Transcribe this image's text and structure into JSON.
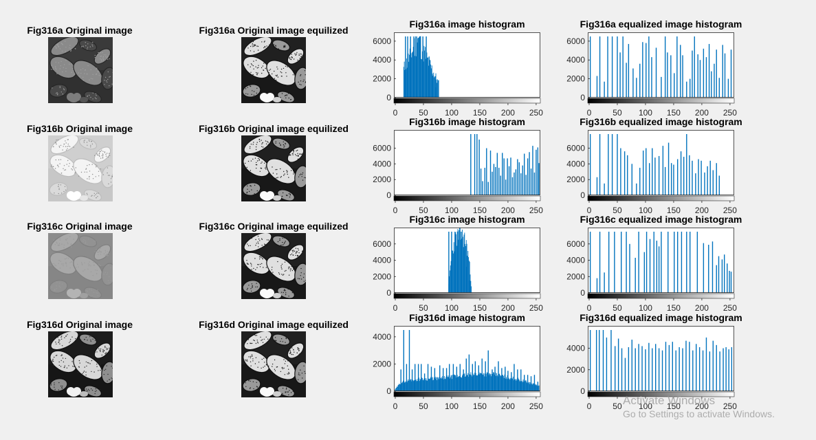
{
  "figure": {
    "axis_color": "#262626",
    "bar_color": "#0072bd"
  },
  "image_panels": [
    {
      "title": "Fig316a Original image",
      "tone": "dark"
    },
    {
      "title": "Fig316a Original image equilized",
      "tone": "equalized"
    },
    {
      "title": "Fig316b Original image",
      "tone": "light"
    },
    {
      "title": "Fig316b Original image equilized",
      "tone": "equalized"
    },
    {
      "title": "Fig316c Original image",
      "tone": "low-contrast"
    },
    {
      "title": "Fig316c Original image equilized",
      "tone": "equalized"
    },
    {
      "title": "Fig316d Original image",
      "tone": "high-contrast"
    },
    {
      "title": "Fig316d Original image equilized",
      "tone": "equalized"
    }
  ],
  "chart_data": [
    {
      "type": "bar",
      "title": "Fig316a image histogram",
      "xlim": [
        0,
        255
      ],
      "ylim": [
        0,
        6500
      ],
      "xticks": [
        0,
        50,
        100,
        150,
        200,
        250
      ],
      "yticks": [
        0,
        2000,
        4000,
        6000
      ],
      "series": [
        {
          "kind": "dense",
          "range": [
            15,
            77
          ],
          "shape": "peak",
          "peak_at": 40,
          "base": 1200,
          "peak": 6500
        }
      ],
      "spikes": [
        [
          18,
          6500
        ],
        [
          22,
          6500
        ],
        [
          27,
          6500
        ],
        [
          33,
          6500
        ],
        [
          38,
          6500
        ],
        [
          44,
          6500
        ],
        [
          49,
          6500
        ],
        [
          55,
          6500
        ],
        [
          60,
          4300
        ],
        [
          66,
          2300
        ],
        [
          72,
          1100
        ]
      ]
    },
    {
      "type": "bar",
      "title": "Fig316a equalized image histogram",
      "xlim": [
        0,
        255
      ],
      "ylim": [
        0,
        6500
      ],
      "xticks": [
        0,
        50,
        100,
        150,
        200,
        250
      ],
      "yticks": [
        0,
        2000,
        4000,
        6000
      ],
      "spikes": [
        [
          2,
          6500
        ],
        [
          14,
          2300
        ],
        [
          19,
          6500
        ],
        [
          27,
          1700
        ],
        [
          33,
          6500
        ],
        [
          41,
          6500
        ],
        [
          50,
          6500
        ],
        [
          55,
          4800
        ],
        [
          60,
          6500
        ],
        [
          66,
          3700
        ],
        [
          70,
          5700
        ],
        [
          78,
          3100
        ],
        [
          84,
          2100
        ],
        [
          90,
          3600
        ],
        [
          95,
          5900
        ],
        [
          101,
          5800
        ],
        [
          106,
          6500
        ],
        [
          111,
          4300
        ],
        [
          119,
          5300
        ],
        [
          128,
          2200
        ],
        [
          135,
          6500
        ],
        [
          139,
          4800
        ],
        [
          145,
          4500
        ],
        [
          151,
          2600
        ],
        [
          156,
          6500
        ],
        [
          162,
          5600
        ],
        [
          166,
          4500
        ],
        [
          173,
          1700
        ],
        [
          179,
          2000
        ],
        [
          183,
          5000
        ],
        [
          187,
          6500
        ],
        [
          193,
          4600
        ],
        [
          197,
          4000
        ],
        [
          203,
          5200
        ],
        [
          208,
          4300
        ],
        [
          213,
          5700
        ],
        [
          217,
          2800
        ],
        [
          222,
          3600
        ],
        [
          226,
          5100
        ],
        [
          231,
          2100
        ],
        [
          237,
          5600
        ],
        [
          241,
          4700
        ],
        [
          247,
          2000
        ],
        [
          252,
          5100
        ]
      ]
    },
    {
      "type": "bar",
      "title": "Fig316b image histogram",
      "xlim": [
        0,
        255
      ],
      "ylim": [
        0,
        7800
      ],
      "xticks": [
        0,
        50,
        100,
        150,
        200,
        250
      ],
      "yticks": [
        0,
        2000,
        4000,
        6000
      ],
      "spikes": [
        [
          134,
          7800
        ],
        [
          141,
          7800
        ],
        [
          145,
          7800
        ],
        [
          149,
          7100
        ],
        [
          152,
          3400
        ],
        [
          155,
          1800
        ],
        [
          159,
          3500
        ],
        [
          162,
          6000
        ],
        [
          165,
          1700
        ],
        [
          169,
          5700
        ],
        [
          172,
          3000
        ],
        [
          175,
          4000
        ],
        [
          178,
          3600
        ],
        [
          181,
          5400
        ],
        [
          184,
          3500
        ],
        [
          187,
          2500
        ],
        [
          190,
          5400
        ],
        [
          193,
          4700
        ],
        [
          196,
          2000
        ],
        [
          199,
          4700
        ],
        [
          202,
          3700
        ],
        [
          205,
          4800
        ],
        [
          208,
          2300
        ],
        [
          211,
          2900
        ],
        [
          214,
          3300
        ],
        [
          217,
          4600
        ],
        [
          220,
          4200
        ],
        [
          223,
          2800
        ],
        [
          226,
          3800
        ],
        [
          229,
          5300
        ],
        [
          232,
          2600
        ],
        [
          235,
          4700
        ],
        [
          238,
          5500
        ],
        [
          241,
          3400
        ],
        [
          244,
          6300
        ],
        [
          247,
          2900
        ],
        [
          250,
          5800
        ],
        [
          253,
          6100
        ],
        [
          255,
          4100
        ]
      ]
    },
    {
      "type": "bar",
      "title": "Fig316b equalized image histogram",
      "xlim": [
        0,
        255
      ],
      "ylim": [
        0,
        7800
      ],
      "xticks": [
        0,
        50,
        100,
        150,
        200,
        250
      ],
      "yticks": [
        0,
        2000,
        4000,
        6000
      ],
      "spikes": [
        [
          2,
          7800
        ],
        [
          14,
          2300
        ],
        [
          19,
          7800
        ],
        [
          27,
          1500
        ],
        [
          34,
          7800
        ],
        [
          41,
          7800
        ],
        [
          50,
          7800
        ],
        [
          56,
          6000
        ],
        [
          63,
          5600
        ],
        [
          68,
          5100
        ],
        [
          76,
          4000
        ],
        [
          84,
          1500
        ],
        [
          90,
          3500
        ],
        [
          96,
          5700
        ],
        [
          101,
          6000
        ],
        [
          107,
          4100
        ],
        [
          112,
          6000
        ],
        [
          117,
          4800
        ],
        [
          124,
          5000
        ],
        [
          131,
          6300
        ],
        [
          135,
          3600
        ],
        [
          141,
          6700
        ],
        [
          146,
          4100
        ],
        [
          150,
          3900
        ],
        [
          157,
          4600
        ],
        [
          163,
          5600
        ],
        [
          168,
          4900
        ],
        [
          173,
          7800
        ],
        [
          178,
          5100
        ],
        [
          183,
          4400
        ],
        [
          189,
          2800
        ],
        [
          194,
          4600
        ],
        [
          199,
          4400
        ],
        [
          205,
          2900
        ],
        [
          210,
          3700
        ],
        [
          215,
          4400
        ],
        [
          220,
          3200
        ],
        [
          226,
          4100
        ],
        [
          231,
          2500
        ]
      ]
    },
    {
      "type": "bar",
      "title": "Fig316c image histogram",
      "xlim": [
        0,
        255
      ],
      "ylim": [
        0,
        7500
      ],
      "xticks": [
        0,
        50,
        100,
        150,
        200,
        250
      ],
      "yticks": [
        0,
        2000,
        4000,
        6000
      ],
      "series": [
        {
          "kind": "dense",
          "range": [
            94,
            136
          ],
          "shape": "plateau",
          "base": 1200,
          "peak": 7500
        }
      ],
      "spikes": [
        [
          95,
          7500
        ],
        [
          100,
          7500
        ],
        [
          106,
          7500
        ],
        [
          111,
          7500
        ],
        [
          117,
          7500
        ],
        [
          122,
          5200
        ],
        [
          127,
          3200
        ],
        [
          132,
          1500
        ]
      ]
    },
    {
      "type": "bar",
      "title": "Fig316c equalized image histogram",
      "xlim": [
        0,
        255
      ],
      "ylim": [
        0,
        7500
      ],
      "xticks": [
        0,
        50,
        100,
        150,
        200,
        250
      ],
      "yticks": [
        0,
        2000,
        4000,
        6000
      ],
      "spikes": [
        [
          2,
          7500
        ],
        [
          14,
          1800
        ],
        [
          19,
          7500
        ],
        [
          27,
          2500
        ],
        [
          35,
          7500
        ],
        [
          45,
          7500
        ],
        [
          57,
          7500
        ],
        [
          66,
          7500
        ],
        [
          72,
          6000
        ],
        [
          82,
          4300
        ],
        [
          88,
          7500
        ],
        [
          98,
          5000
        ],
        [
          102,
          7500
        ],
        [
          108,
          6600
        ],
        [
          115,
          7500
        ],
        [
          120,
          6400
        ],
        [
          124,
          5700
        ],
        [
          128,
          7500
        ],
        [
          140,
          7500
        ],
        [
          151,
          7500
        ],
        [
          157,
          7500
        ],
        [
          164,
          7500
        ],
        [
          173,
          7500
        ],
        [
          179,
          7500
        ],
        [
          192,
          7500
        ],
        [
          203,
          6100
        ],
        [
          212,
          5900
        ],
        [
          219,
          6300
        ],
        [
          226,
          3400
        ],
        [
          230,
          4500
        ],
        [
          236,
          4100
        ],
        [
          240,
          4700
        ],
        [
          245,
          3600
        ],
        [
          249,
          2700
        ],
        [
          252,
          2600
        ]
      ]
    },
    {
      "type": "bar",
      "title": "Fig316d image histogram",
      "xlim": [
        0,
        255
      ],
      "ylim": [
        0,
        4500
      ],
      "xticks": [
        0,
        50,
        100,
        150,
        200,
        250
      ],
      "yticks": [
        0,
        2000,
        4000
      ],
      "series": [
        {
          "kind": "dense",
          "range": [
            0,
            255
          ],
          "shape": "broad",
          "values_at": [
            [
              0,
              150
            ],
            [
              10,
              650
            ],
            [
              30,
              850
            ],
            [
              80,
              950
            ],
            [
              110,
              1100
            ],
            [
              150,
              1300
            ],
            [
              180,
              1200
            ],
            [
              220,
              850
            ],
            [
              255,
              400
            ]
          ]
        }
      ],
      "spikes": [
        [
          10,
          1600
        ],
        [
          15,
          4500
        ],
        [
          20,
          2000
        ],
        [
          25,
          4500
        ],
        [
          30,
          1600
        ],
        [
          35,
          2000
        ],
        [
          41,
          2000
        ],
        [
          46,
          2000
        ],
        [
          52,
          1300
        ],
        [
          58,
          2000
        ],
        [
          64,
          1800
        ],
        [
          70,
          1700
        ],
        [
          79,
          1900
        ],
        [
          85,
          1700
        ],
        [
          91,
          1700
        ],
        [
          96,
          2000
        ],
        [
          103,
          2000
        ],
        [
          109,
          1800
        ],
        [
          115,
          2000
        ],
        [
          121,
          1600
        ],
        [
          126,
          2400
        ],
        [
          131,
          2700
        ],
        [
          137,
          2000
        ],
        [
          142,
          2200
        ],
        [
          148,
          1900
        ],
        [
          154,
          2400
        ],
        [
          160,
          2200
        ],
        [
          165,
          3000
        ],
        [
          172,
          1600
        ],
        [
          177,
          1800
        ],
        [
          183,
          2200
        ],
        [
          189,
          1700
        ],
        [
          195,
          1800
        ],
        [
          200,
          1500
        ],
        [
          206,
          1400
        ],
        [
          211,
          2000
        ],
        [
          217,
          1600
        ],
        [
          223,
          1600
        ],
        [
          229,
          1200
        ],
        [
          235,
          1200
        ],
        [
          241,
          1100
        ],
        [
          247,
          1200
        ],
        [
          253,
          700
        ]
      ]
    },
    {
      "type": "bar",
      "title": "Fig316d equalized image histogram",
      "xlim": [
        0,
        255
      ],
      "ylim": [
        0,
        5700
      ],
      "xticks": [
        0,
        50,
        100,
        150,
        200,
        250
      ],
      "yticks": [
        0,
        2000,
        4000
      ],
      "spikes": [
        [
          2,
          5700
        ],
        [
          13,
          5700
        ],
        [
          18,
          5700
        ],
        [
          25,
          5700
        ],
        [
          31,
          5000
        ],
        [
          39,
          5700
        ],
        [
          46,
          4200
        ],
        [
          52,
          4900
        ],
        [
          58,
          4000
        ],
        [
          64,
          3100
        ],
        [
          70,
          4100
        ],
        [
          76,
          4800
        ],
        [
          82,
          4000
        ],
        [
          88,
          4400
        ],
        [
          94,
          4200
        ],
        [
          100,
          3900
        ],
        [
          106,
          4500
        ],
        [
          112,
          4000
        ],
        [
          118,
          4400
        ],
        [
          124,
          4000
        ],
        [
          130,
          3800
        ],
        [
          136,
          4600
        ],
        [
          142,
          4300
        ],
        [
          148,
          4600
        ],
        [
          154,
          3800
        ],
        [
          160,
          4100
        ],
        [
          166,
          4000
        ],
        [
          172,
          4700
        ],
        [
          178,
          4600
        ],
        [
          184,
          3800
        ],
        [
          190,
          4400
        ],
        [
          196,
          4100
        ],
        [
          202,
          3800
        ],
        [
          208,
          5000
        ],
        [
          214,
          3700
        ],
        [
          220,
          4700
        ],
        [
          226,
          4300
        ],
        [
          232,
          3700
        ],
        [
          238,
          4000
        ],
        [
          243,
          4100
        ],
        [
          248,
          3900
        ],
        [
          253,
          4100
        ]
      ]
    }
  ],
  "watermark": {
    "line1": "Activate Windows",
    "line2": "Go to Settings to activate Windows."
  }
}
